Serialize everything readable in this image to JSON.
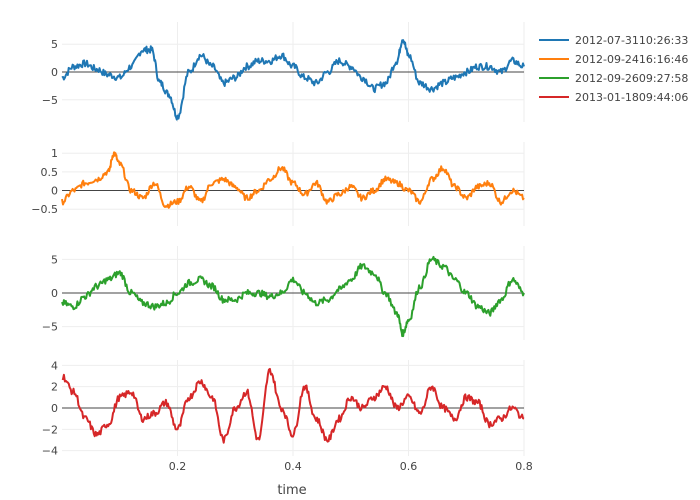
{
  "chart_data": {
    "type": "line",
    "layout": "stacked-subplots",
    "xlabel": "time",
    "xlim": [
      0,
      0.8
    ],
    "x_ticks": [
      0.2,
      0.4,
      0.6,
      0.8
    ],
    "x_tick_labels": [
      "0.2",
      "0.4",
      "0.6",
      "0.8"
    ],
    "legend_position": "top-right",
    "series": [
      {
        "name": "2012-07-3110:26:33",
        "color": "#1f77b4",
        "ylim": [
          -9,
          9
        ],
        "y_ticks": [
          -5,
          0,
          5
        ],
        "y_tick_labels": [
          "−5",
          "0",
          "5"
        ],
        "x": [
          0,
          0.02,
          0.04,
          0.06,
          0.08,
          0.1,
          0.12,
          0.14,
          0.155,
          0.17,
          0.185,
          0.2,
          0.22,
          0.24,
          0.26,
          0.28,
          0.3,
          0.32,
          0.34,
          0.36,
          0.38,
          0.4,
          0.42,
          0.44,
          0.46,
          0.48,
          0.5,
          0.52,
          0.54,
          0.56,
          0.58,
          0.59,
          0.6,
          0.62,
          0.64,
          0.66,
          0.68,
          0.7,
          0.72,
          0.74,
          0.76,
          0.78,
          0.8
        ],
        "values": [
          -1,
          1,
          1.5,
          0.5,
          -0.5,
          -1,
          1,
          4,
          4,
          -2,
          -4,
          -8,
          0,
          3,
          1,
          -2,
          -1,
          1,
          2,
          2,
          3,
          1,
          -1,
          -2,
          0,
          2,
          1,
          -1,
          -3,
          -2,
          2,
          6,
          3,
          -2,
          -3,
          -2,
          -1,
          0,
          1,
          1,
          0,
          2,
          1
        ]
      },
      {
        "name": "2012-09-2416:16:46",
        "color": "#ff7f0e",
        "ylim": [
          -0.95,
          1.3
        ],
        "y_ticks": [
          -0.5,
          0,
          0.5,
          1
        ],
        "y_tick_labels": [
          "−0.5",
          "0",
          "0.5",
          "1"
        ],
        "x": [
          0,
          0.02,
          0.04,
          0.06,
          0.08,
          0.09,
          0.1,
          0.12,
          0.14,
          0.16,
          0.18,
          0.2,
          0.22,
          0.24,
          0.26,
          0.28,
          0.3,
          0.32,
          0.34,
          0.36,
          0.38,
          0.4,
          0.42,
          0.44,
          0.46,
          0.48,
          0.5,
          0.52,
          0.54,
          0.56,
          0.58,
          0.6,
          0.62,
          0.64,
          0.66,
          0.68,
          0.7,
          0.72,
          0.74,
          0.76,
          0.78,
          0.8
        ],
        "values": [
          -0.3,
          0,
          0.2,
          0.3,
          0.5,
          1.0,
          0.7,
          0,
          -0.2,
          0.2,
          -0.4,
          -0.3,
          0.1,
          -0.3,
          0.2,
          0.3,
          0.1,
          -0.2,
          0,
          0.3,
          0.6,
          0.2,
          -0.1,
          0.2,
          -0.3,
          -0.1,
          0.1,
          -0.2,
          0,
          0.3,
          0.2,
          0,
          -0.3,
          0.3,
          0.6,
          0.1,
          -0.2,
          0.1,
          0.2,
          -0.3,
          0,
          -0.2
        ]
      },
      {
        "name": "2012-09-2609:27:58",
        "color": "#2ca02c",
        "ylim": [
          -7,
          7
        ],
        "y_ticks": [
          -5,
          0,
          5
        ],
        "y_tick_labels": [
          "−5",
          "0",
          "5"
        ],
        "x": [
          0,
          0.02,
          0.04,
          0.06,
          0.08,
          0.1,
          0.12,
          0.14,
          0.16,
          0.18,
          0.2,
          0.22,
          0.24,
          0.26,
          0.28,
          0.3,
          0.32,
          0.34,
          0.36,
          0.38,
          0.4,
          0.42,
          0.44,
          0.46,
          0.48,
          0.5,
          0.52,
          0.54,
          0.56,
          0.58,
          0.59,
          0.6,
          0.62,
          0.64,
          0.66,
          0.68,
          0.7,
          0.72,
          0.74,
          0.76,
          0.78,
          0.8
        ],
        "values": [
          -1.5,
          -2,
          -0.5,
          1,
          2,
          3,
          0,
          -1.5,
          -2,
          -1.5,
          0,
          1.5,
          2,
          1,
          -1,
          -1,
          0,
          0,
          -0.5,
          0,
          2,
          0,
          -1.5,
          -1,
          0.5,
          2,
          4,
          3,
          0,
          -3,
          -6,
          -4,
          1,
          5,
          4,
          2,
          0,
          -2,
          -3,
          -1,
          2,
          0
        ]
      },
      {
        "name": "2013-01-1809:44:06",
        "color": "#d62728",
        "ylim": [
          -4.5,
          4.5
        ],
        "y_ticks": [
          -4,
          -2,
          0,
          2,
          4
        ],
        "y_tick_labels": [
          "−4",
          "−2",
          "0",
          "2",
          "4"
        ],
        "x": [
          0,
          0.02,
          0.04,
          0.06,
          0.08,
          0.1,
          0.12,
          0.14,
          0.16,
          0.18,
          0.2,
          0.22,
          0.24,
          0.26,
          0.28,
          0.3,
          0.32,
          0.34,
          0.36,
          0.38,
          0.4,
          0.42,
          0.44,
          0.46,
          0.48,
          0.5,
          0.52,
          0.54,
          0.56,
          0.58,
          0.6,
          0.62,
          0.64,
          0.66,
          0.68,
          0.7,
          0.72,
          0.74,
          0.76,
          0.78,
          0.8
        ],
        "values": [
          3,
          1.5,
          -1,
          -2.5,
          -1.5,
          1,
          1.5,
          -1,
          -0.5,
          0.5,
          -2,
          1,
          2.5,
          1,
          -3,
          0,
          1.5,
          -3,
          3.5,
          0,
          -2.5,
          2,
          -1,
          -3,
          -1,
          1,
          0,
          1,
          2,
          0,
          1,
          -0.5,
          2,
          0,
          -1,
          1,
          0.5,
          -1.5,
          -1,
          0,
          -1
        ]
      }
    ]
  }
}
